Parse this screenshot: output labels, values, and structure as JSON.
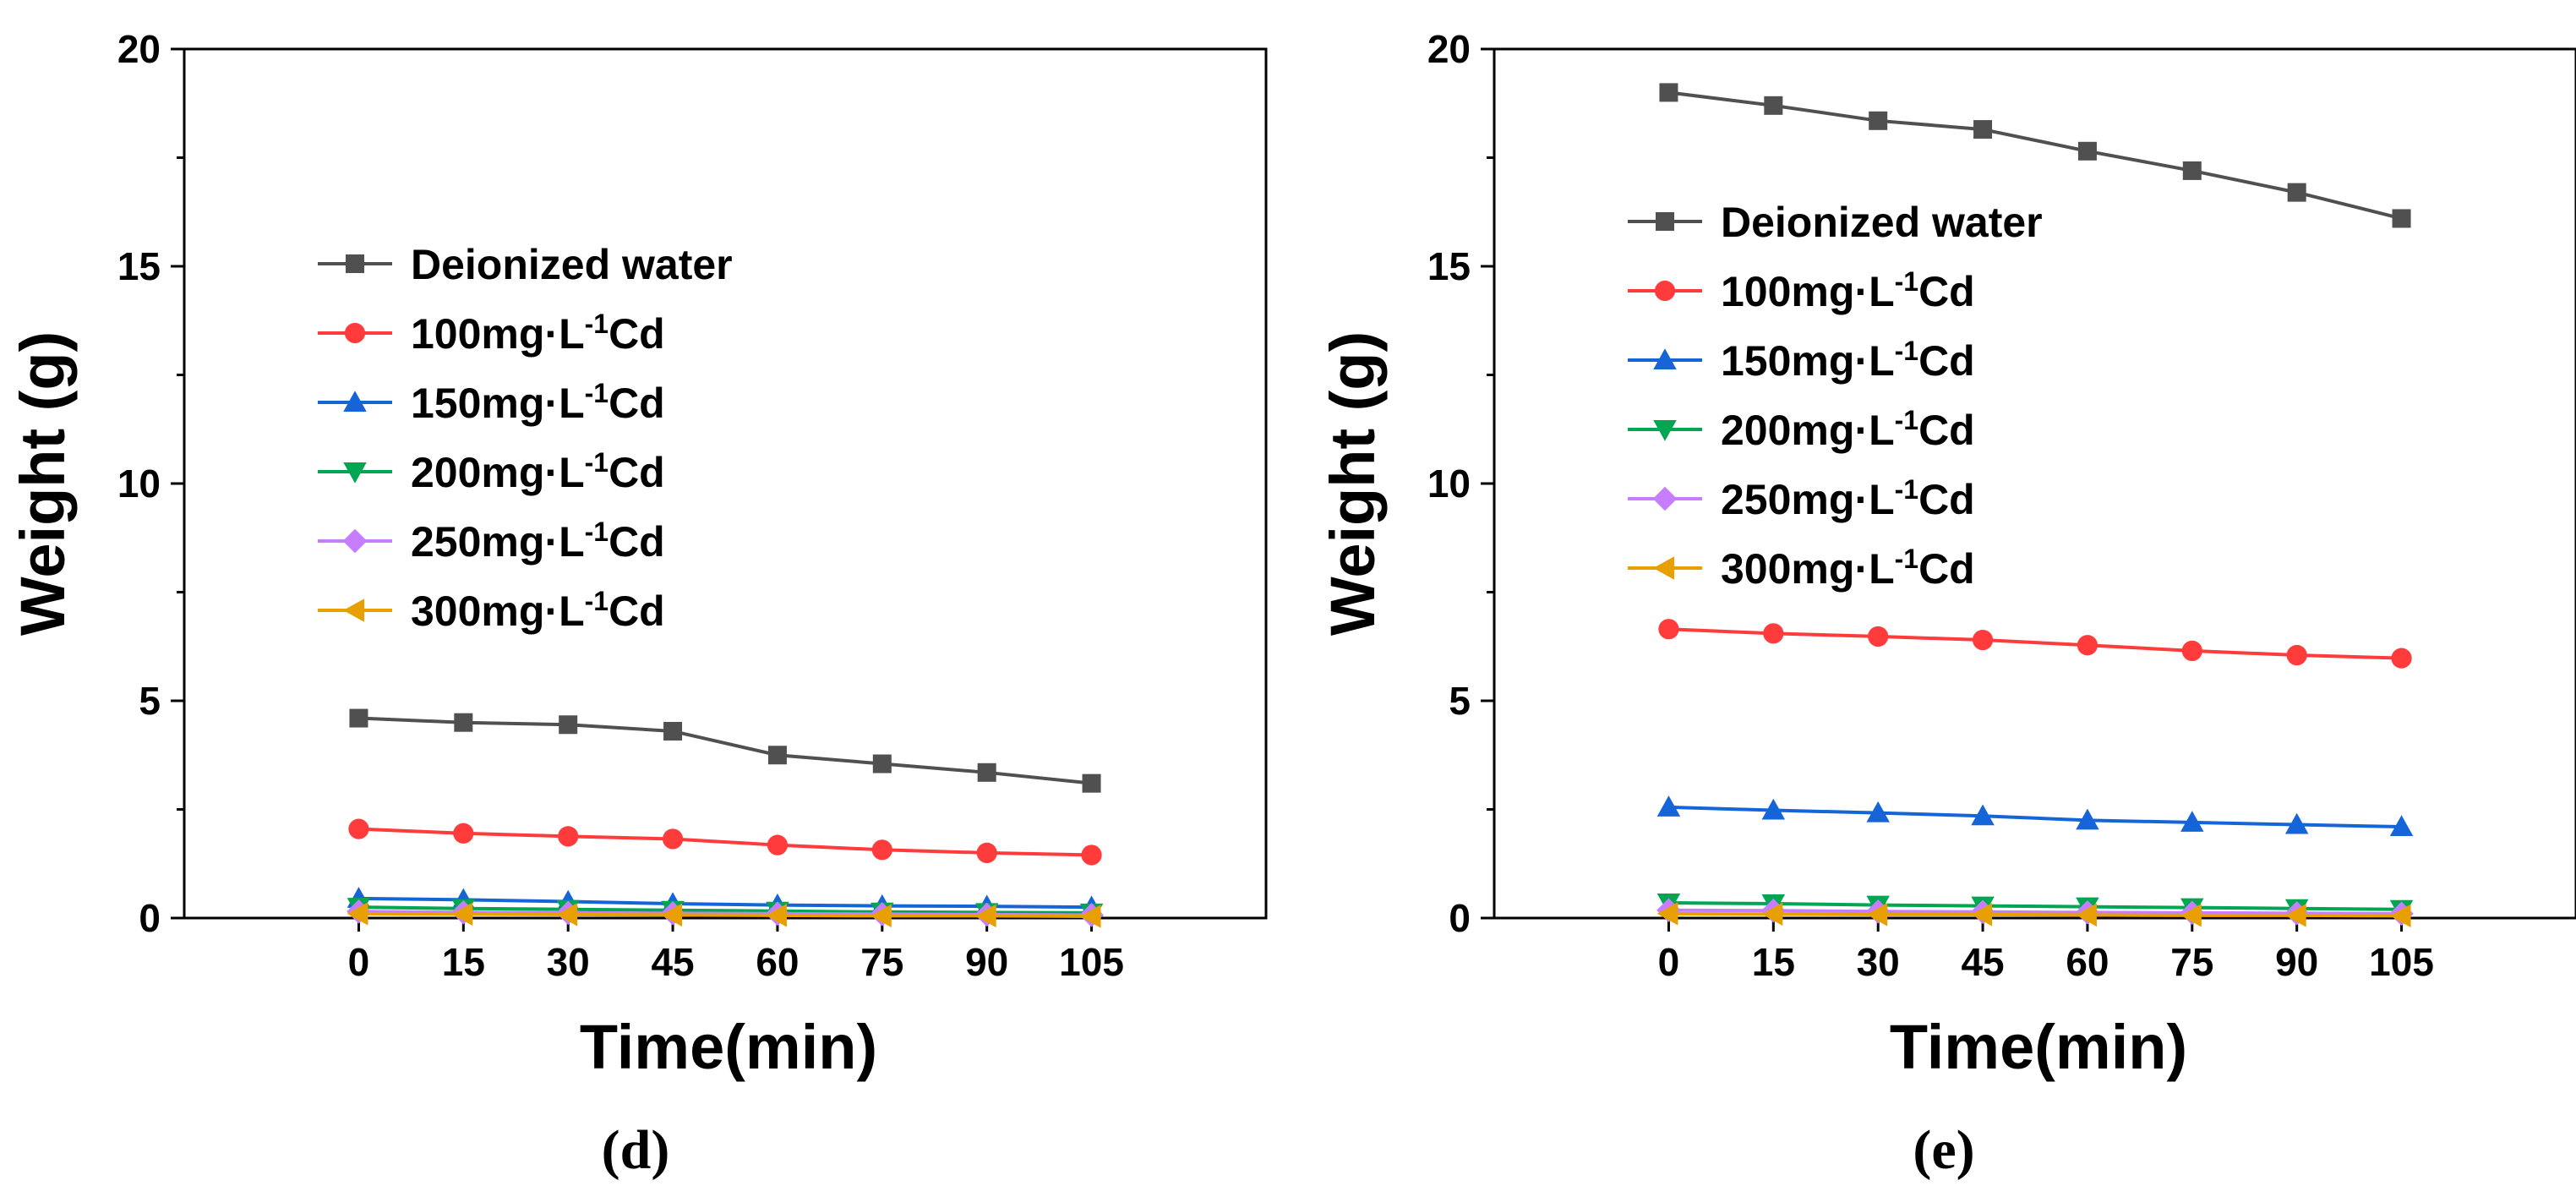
{
  "chart_data": [
    {
      "type": "line",
      "panel_label": "(d)",
      "xlabel": "Time(min)",
      "ylabel": "Weight (g)",
      "x": [
        0,
        15,
        30,
        45,
        60,
        75,
        90,
        105
      ],
      "x_ticks": [
        "0",
        "15",
        "30",
        "45",
        "60",
        "75",
        "90",
        "105"
      ],
      "y_ticks": [
        "0",
        "5",
        "10",
        "15",
        "20"
      ],
      "xlim": [
        -25,
        130
      ],
      "ylim": [
        0,
        20
      ],
      "grid": false,
      "legend_position": "upper-left",
      "series": [
        {
          "name": "Deionized water",
          "prefix": "Deionized water",
          "sup": "",
          "suffix": "",
          "color": "#505050",
          "marker": "square",
          "values": [
            4.6,
            4.5,
            4.45,
            4.3,
            3.75,
            3.55,
            3.35,
            3.1
          ]
        },
        {
          "name": "100mg·L-1Cd",
          "prefix": "100mg·L",
          "sup": "-1",
          "suffix": "Cd",
          "color": "#ff3b3b",
          "marker": "circle",
          "values": [
            2.05,
            1.95,
            1.88,
            1.82,
            1.68,
            1.57,
            1.5,
            1.45
          ]
        },
        {
          "name": "150mg·L-1Cd",
          "prefix": "150mg·L",
          "sup": "-1",
          "suffix": "Cd",
          "color": "#1565d8",
          "marker": "triangle-up",
          "values": [
            0.45,
            0.42,
            0.38,
            0.33,
            0.3,
            0.28,
            0.27,
            0.25
          ]
        },
        {
          "name": "200mg·L-1Cd",
          "prefix": "200mg·L",
          "sup": "-1",
          "suffix": "Cd",
          "color": "#00a651",
          "marker": "triangle-down",
          "values": [
            0.25,
            0.22,
            0.2,
            0.18,
            0.16,
            0.14,
            0.13,
            0.12
          ]
        },
        {
          "name": "250mg·L-1Cd",
          "prefix": "250mg·L",
          "sup": "-1",
          "suffix": "Cd",
          "color": "#c77dff",
          "marker": "diamond",
          "values": [
            0.15,
            0.13,
            0.12,
            0.11,
            0.1,
            0.09,
            0.08,
            0.07
          ]
        },
        {
          "name": "300mg·L-1Cd",
          "prefix": "300mg·L",
          "sup": "-1",
          "suffix": "Cd",
          "color": "#e8a000",
          "marker": "triangle-left",
          "values": [
            0.1,
            0.09,
            0.08,
            0.07,
            0.06,
            0.05,
            0.05,
            0.04
          ]
        }
      ]
    },
    {
      "type": "line",
      "panel_label": "(e)",
      "xlabel": "Time(min)",
      "ylabel": "Weight (g)",
      "x": [
        0,
        15,
        30,
        45,
        60,
        75,
        90,
        105
      ],
      "x_ticks": [
        "0",
        "15",
        "30",
        "45",
        "60",
        "75",
        "90",
        "105"
      ],
      "y_ticks": [
        "0",
        "5",
        "10",
        "15",
        "20"
      ],
      "xlim": [
        -25,
        130
      ],
      "ylim": [
        0,
        20
      ],
      "grid": false,
      "legend_position": "upper-left",
      "series": [
        {
          "name": "Deionized water",
          "prefix": "Deionized water",
          "sup": "",
          "suffix": "",
          "color": "#505050",
          "marker": "square",
          "values": [
            19.0,
            18.7,
            18.35,
            18.15,
            17.65,
            17.2,
            16.7,
            16.1
          ]
        },
        {
          "name": "100mg·L-1Cd",
          "prefix": "100mg·L",
          "sup": "-1",
          "suffix": "Cd",
          "color": "#ff3b3b",
          "marker": "circle",
          "values": [
            6.65,
            6.55,
            6.48,
            6.4,
            6.28,
            6.15,
            6.05,
            5.98
          ]
        },
        {
          "name": "150mg·L-1Cd",
          "prefix": "150mg·L",
          "sup": "-1",
          "suffix": "Cd",
          "color": "#1565d8",
          "marker": "triangle-up",
          "values": [
            2.55,
            2.48,
            2.42,
            2.35,
            2.25,
            2.2,
            2.15,
            2.1
          ]
        },
        {
          "name": "200mg·L-1Cd",
          "prefix": "200mg·L",
          "sup": "-1",
          "suffix": "Cd",
          "color": "#00a651",
          "marker": "triangle-down",
          "values": [
            0.35,
            0.33,
            0.3,
            0.28,
            0.26,
            0.24,
            0.22,
            0.2
          ]
        },
        {
          "name": "250mg·L-1Cd",
          "prefix": "250mg·L",
          "sup": "-1",
          "suffix": "Cd",
          "color": "#c77dff",
          "marker": "diamond",
          "values": [
            0.18,
            0.17,
            0.15,
            0.14,
            0.13,
            0.12,
            0.11,
            0.1
          ]
        },
        {
          "name": "300mg·L-1Cd",
          "prefix": "300mg·L",
          "sup": "-1",
          "suffix": "Cd",
          "color": "#e8a000",
          "marker": "triangle-left",
          "values": [
            0.1,
            0.09,
            0.08,
            0.08,
            0.07,
            0.06,
            0.06,
            0.05
          ]
        }
      ]
    }
  ]
}
